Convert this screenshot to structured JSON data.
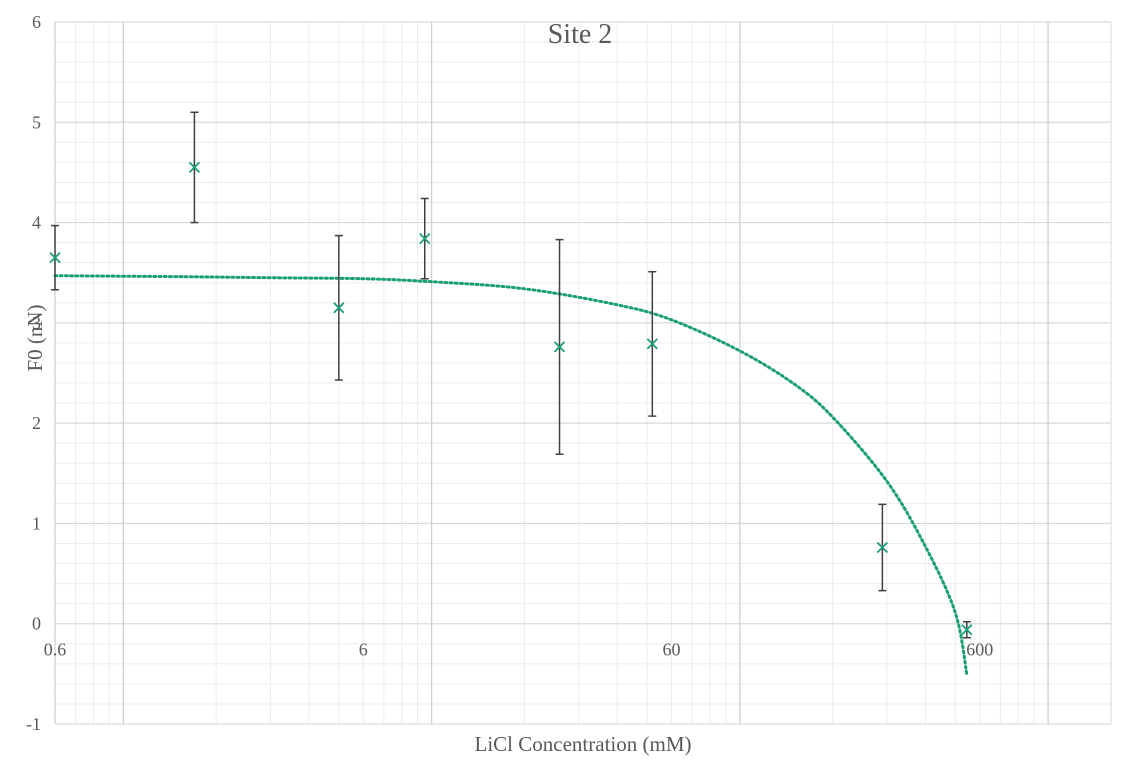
{
  "chart_data": {
    "type": "scatter",
    "title": "Site 2",
    "xlabel": "LiCl Concentration (mM)",
    "ylabel": "F0 (nN)",
    "x_scale": "log",
    "xlim": [
      0.6,
      1600
    ],
    "ylim": [
      -1,
      6
    ],
    "x_ticks": [
      0.6,
      6,
      60,
      600
    ],
    "x_tick_labels": [
      "0.6",
      "6",
      "60",
      "600"
    ],
    "y_ticks": [
      -1,
      0,
      1,
      2,
      3,
      4,
      5,
      6
    ],
    "y_tick_labels": [
      "-1",
      "0",
      "1",
      "2",
      "3",
      "4",
      "5",
      "6"
    ],
    "grid": true,
    "legend": "none",
    "series": [
      {
        "marker": "x",
        "color": "#1a9e77",
        "points": [
          {
            "x": 0.6,
            "y": 3.65,
            "err": 0.32
          },
          {
            "x": 1.7,
            "y": 4.55,
            "err": 0.55
          },
          {
            "x": 5.0,
            "y": 3.15,
            "err": 0.72
          },
          {
            "x": 9.5,
            "y": 3.84,
            "err": 0.4
          },
          {
            "x": 26,
            "y": 2.76,
            "err": 1.07
          },
          {
            "x": 52,
            "y": 2.79,
            "err": 0.72
          },
          {
            "x": 290,
            "y": 0.76,
            "err": 0.43
          },
          {
            "x": 545,
            "y": -0.06,
            "err": 0.08
          }
        ]
      }
    ],
    "trendline": {
      "style": "dotted",
      "color": "#1a9e77",
      "x": [
        0.6,
        1.6,
        3,
        6,
        10,
        20,
        40,
        60,
        100,
        150,
        200,
        300,
        400,
        500,
        545
      ],
      "y": [
        3.47,
        3.46,
        3.45,
        3.44,
        3.41,
        3.34,
        3.18,
        3.03,
        2.72,
        2.39,
        2.06,
        1.42,
        0.77,
        0.11,
        -0.5
      ]
    }
  }
}
